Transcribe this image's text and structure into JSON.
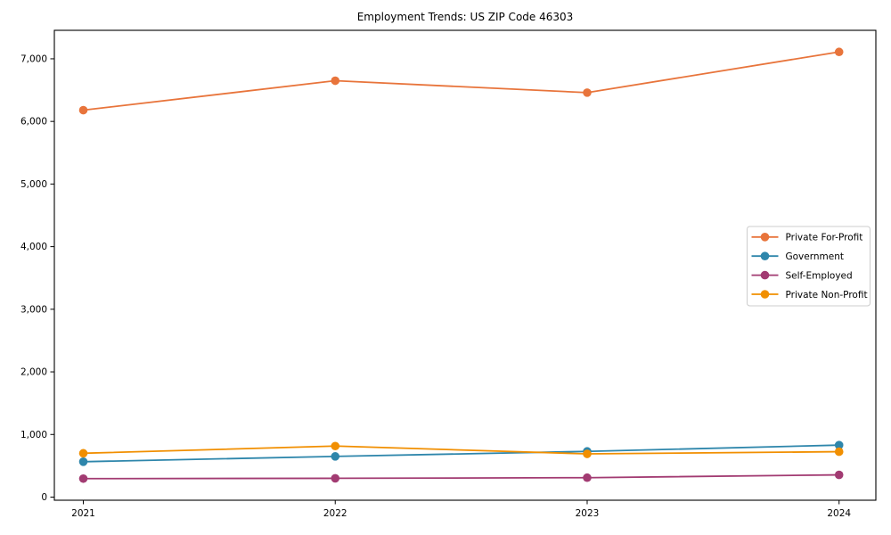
{
  "chart_data": {
    "type": "line",
    "title": "Employment Trends: US ZIP Code 46303",
    "xlabel": "",
    "ylabel": "",
    "x": [
      2021,
      2022,
      2023,
      2024
    ],
    "x_tick_labels": [
      "2021",
      "2022",
      "2023",
      "2024"
    ],
    "series": [
      {
        "name": "Private For-Profit",
        "color": "#e8743b",
        "values": [
          6180,
          6650,
          6460,
          7110
        ]
      },
      {
        "name": "Government",
        "color": "#2e86ab",
        "values": [
          565,
          650,
          730,
          830
        ]
      },
      {
        "name": "Self-Employed",
        "color": "#a23b72",
        "values": [
          295,
          300,
          310,
          355
        ]
      },
      {
        "name": "Private Non-Profit",
        "color": "#f18f01",
        "values": [
          700,
          815,
          690,
          725
        ]
      }
    ],
    "yticks": [
      {
        "value": 0,
        "label": "0"
      },
      {
        "value": 1000,
        "label": "1,000"
      },
      {
        "value": 2000,
        "label": "2,000"
      },
      {
        "value": 3000,
        "label": "3,000"
      },
      {
        "value": 4000,
        "label": "4,000"
      },
      {
        "value": 5000,
        "label": "5,000"
      },
      {
        "value": 6000,
        "label": "6,000"
      },
      {
        "value": 7000,
        "label": "7,000"
      },
      {
        "value": 7000,
        "label": "7,000"
      }
    ],
    "xlim": [
      2020.885,
      2024.146
    ],
    "ylim": [
      -50,
      7455
    ],
    "grid": false,
    "legend_position": "center right",
    "axis_color": "#000000",
    "legend_border_color": "#cccccc",
    "background_color": "#ffffff"
  }
}
